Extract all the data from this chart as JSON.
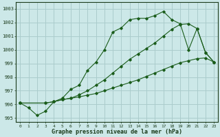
{
  "title": "Graphe pression niveau de la mer (hPa)",
  "bg_color": "#cce8e8",
  "grid_color": "#aacccc",
  "line_color": "#1a5c1a",
  "xlim": [
    -0.5,
    23.5
  ],
  "ylim": [
    994.7,
    1003.5
  ],
  "xticks": [
    0,
    1,
    2,
    3,
    4,
    5,
    6,
    7,
    8,
    9,
    10,
    11,
    12,
    13,
    14,
    15,
    16,
    17,
    18,
    19,
    20,
    21,
    22,
    23
  ],
  "yticks": [
    995,
    996,
    997,
    998,
    999,
    1000,
    1001,
    1002,
    1003
  ],
  "series1_x": [
    0,
    1,
    2,
    3,
    4,
    5,
    6,
    7,
    8,
    9,
    10,
    11,
    12,
    13,
    14,
    15,
    16,
    17,
    18,
    19,
    20,
    21,
    22,
    23
  ],
  "series1_y": [
    996.1,
    995.75,
    995.2,
    995.5,
    996.2,
    996.45,
    997.1,
    997.4,
    998.5,
    999.1,
    1000.0,
    1001.3,
    1001.6,
    1002.2,
    1002.3,
    1002.3,
    1002.5,
    1002.8,
    1002.2,
    1001.9,
    1000.0,
    1001.55,
    999.8,
    999.1
  ],
  "series2_x": [
    0,
    3,
    4,
    5,
    6,
    7,
    8,
    9,
    10,
    11,
    12,
    13,
    14,
    15,
    16,
    17,
    18,
    19,
    20,
    21,
    22,
    23
  ],
  "series2_y": [
    996.1,
    996.1,
    996.2,
    996.35,
    996.45,
    996.55,
    996.68,
    996.8,
    997.0,
    997.2,
    997.4,
    997.6,
    997.8,
    998.05,
    998.3,
    998.55,
    998.8,
    999.05,
    999.2,
    999.35,
    999.4,
    999.1
  ],
  "series3_x": [
    0,
    3,
    4,
    5,
    6,
    7,
    8,
    9,
    10,
    11,
    12,
    13,
    14,
    15,
    16,
    17,
    18,
    19,
    20,
    21,
    22,
    23
  ],
  "series3_y": [
    996.1,
    996.1,
    996.2,
    996.35,
    996.45,
    996.7,
    997.0,
    997.4,
    997.8,
    998.3,
    998.8,
    999.3,
    999.7,
    1000.1,
    1000.5,
    1001.0,
    1001.5,
    1001.85,
    1001.9,
    1001.55,
    999.8,
    999.1
  ]
}
